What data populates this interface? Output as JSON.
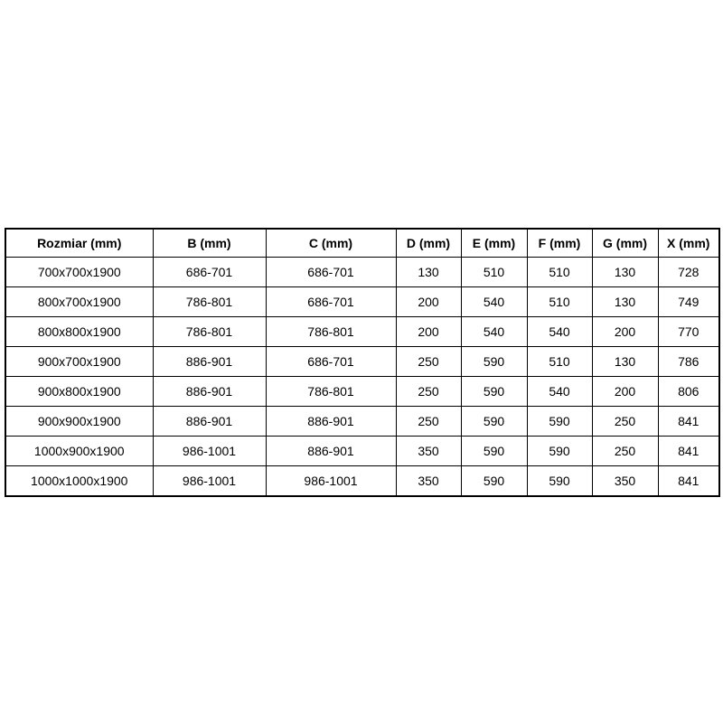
{
  "page": {
    "background": "#ffffff"
  },
  "colors": {
    "border": "#000000",
    "text": "#000000",
    "background": "#ffffff"
  },
  "table": {
    "headers": [
      "Rozmiar (mm)",
      "B (mm)",
      "C (mm)",
      "D (mm)",
      "E (mm)",
      "F (mm)",
      "G (mm)",
      "X (mm)"
    ],
    "rows": [
      [
        "700x700x1900",
        "686-701",
        "686-701",
        "130",
        "510",
        "510",
        "130",
        "728"
      ],
      [
        "800x700x1900",
        "786-801",
        "686-701",
        "200",
        "540",
        "510",
        "130",
        "749"
      ],
      [
        "800x800x1900",
        "786-801",
        "786-801",
        "200",
        "540",
        "540",
        "200",
        "770"
      ],
      [
        "900x700x1900",
        "886-901",
        "686-701",
        "250",
        "590",
        "510",
        "130",
        "786"
      ],
      [
        "900x800x1900",
        "886-901",
        "786-801",
        "250",
        "590",
        "540",
        "200",
        "806"
      ],
      [
        "900x900x1900",
        "886-901",
        "886-901",
        "250",
        "590",
        "590",
        "250",
        "841"
      ],
      [
        "1000x900x1900",
        "986-1001",
        "886-901",
        "350",
        "590",
        "590",
        "250",
        "841"
      ],
      [
        "1000x1000x1900",
        "986-1001",
        "986-1001",
        "350",
        "590",
        "590",
        "350",
        "841"
      ]
    ]
  }
}
